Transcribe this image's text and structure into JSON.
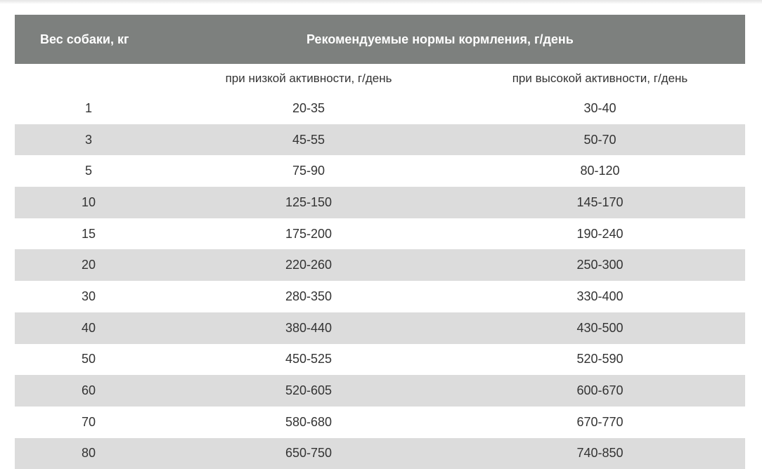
{
  "table": {
    "header": {
      "weight": "Вес собаки, кг",
      "norms": "Рекомендуемые нормы кормления, г/день"
    },
    "subheader": {
      "low": "при низкой активности, г/день",
      "high": "при высокой активности, г/день"
    },
    "rows": [
      {
        "weight": "1",
        "low": "20-35",
        "high": "30-40"
      },
      {
        "weight": "3",
        "low": "45-55",
        "high": "50-70"
      },
      {
        "weight": "5",
        "low": "75-90",
        "high": "80-120"
      },
      {
        "weight": "10",
        "low": "125-150",
        "high": "145-170"
      },
      {
        "weight": "15",
        "low": "175-200",
        "high": "190-240"
      },
      {
        "weight": "20",
        "low": "220-260",
        "high": "250-300"
      },
      {
        "weight": "30",
        "low": "280-350",
        "high": "330-400"
      },
      {
        "weight": "40",
        "low": "380-440",
        "high": "430-500"
      },
      {
        "weight": "50",
        "low": "450-525",
        "high": "520-590"
      },
      {
        "weight": "60",
        "low": "520-605",
        "high": "600-670"
      },
      {
        "weight": "70",
        "low": "580-680",
        "high": "670-770"
      },
      {
        "weight": "80",
        "low": "650-750",
        "high": "740-850"
      }
    ]
  }
}
